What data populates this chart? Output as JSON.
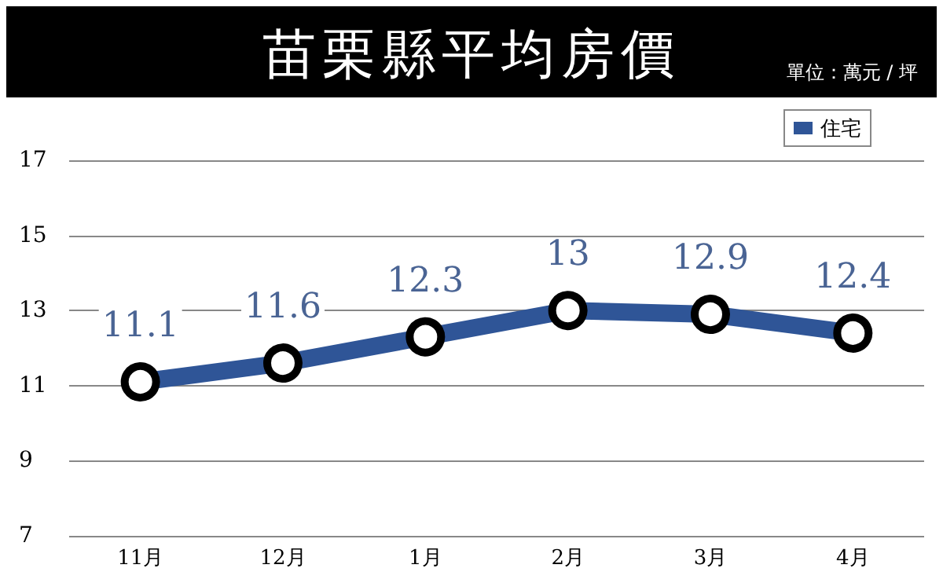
{
  "chart_data": {
    "type": "line",
    "title": "苗栗縣平均房價",
    "annotations": [
      "單位：萬元 / 坪"
    ],
    "categories": [
      "11月",
      "12月",
      "1月",
      "2月",
      "3月",
      "4月"
    ],
    "series": [
      {
        "name": "住宅",
        "color": "#2f5597",
        "values": [
          11.1,
          11.6,
          12.3,
          13,
          12.9,
          12.4
        ]
      }
    ],
    "ylim": [
      7,
      17
    ],
    "yticks": [
      7,
      9,
      11,
      13,
      15,
      17
    ],
    "grid": "y",
    "legend": "top right",
    "marker": "circle",
    "data_labels": true
  }
}
